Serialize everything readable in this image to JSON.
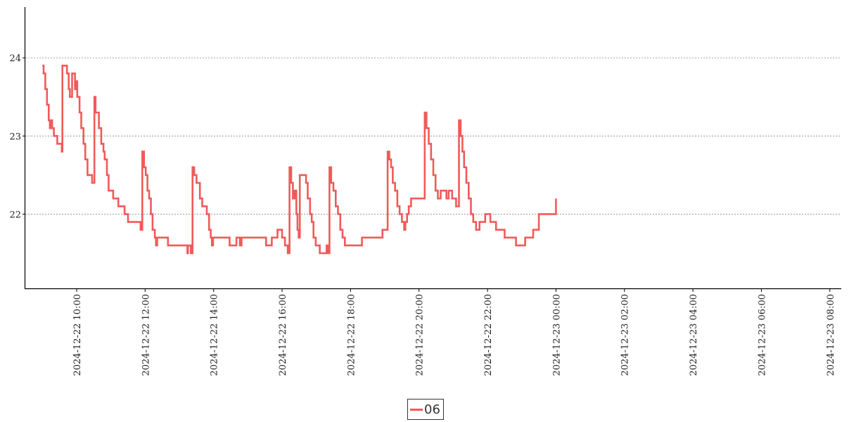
{
  "chart_data": {
    "type": "line",
    "title": "",
    "xlabel": "",
    "ylabel": "",
    "ylim": [
      21.05,
      24.65
    ],
    "yticks": [
      22,
      23,
      24
    ],
    "ytick_labels": [
      "22",
      "23",
      "24"
    ],
    "xlim": [
      "2024-12-22 08:30",
      "2024-12-23 08:20"
    ],
    "xticks": [
      "2024-12-22 10:00",
      "2024-12-22 12:00",
      "2024-12-22 14:00",
      "2024-12-22 16:00",
      "2024-12-22 18:00",
      "2024-12-22 20:00",
      "2024-12-22 22:00",
      "2024-12-23 00:00",
      "2024-12-23 02:00",
      "2024-12-23 04:00",
      "2024-12-23 06:00",
      "2024-12-23 08:00"
    ],
    "xtick_labels": [
      "2024-12-22 10:00",
      "2024-12-22 12:00",
      "2024-12-22 14:00",
      "2024-12-22 16:00",
      "2024-12-22 18:00",
      "2024-12-22 20:00",
      "2024-12-22 22:00",
      "2024-12-23 00:00",
      "2024-12-23 02:00",
      "2024-12-23 04:00",
      "2024-12-23 06:00",
      "2024-12-23 08:00"
    ],
    "grid": "y-dotted",
    "legend_position": "bottom-center",
    "series": [
      {
        "name": "06",
        "color": "#f05a5a",
        "step": true,
        "points": [
          [
            "2024-12-22 09:00",
            23.9
          ],
          [
            "2024-12-22 09:02",
            23.8
          ],
          [
            "2024-12-22 09:05",
            23.6
          ],
          [
            "2024-12-22 09:08",
            23.4
          ],
          [
            "2024-12-22 09:11",
            23.2
          ],
          [
            "2024-12-22 09:13",
            23.1
          ],
          [
            "2024-12-22 09:15",
            23.2
          ],
          [
            "2024-12-22 09:17",
            23.1
          ],
          [
            "2024-12-22 09:20",
            23.0
          ],
          [
            "2024-12-22 09:26",
            22.9
          ],
          [
            "2024-12-22 09:34",
            22.8
          ],
          [
            "2024-12-22 09:35",
            23.9
          ],
          [
            "2024-12-22 09:43",
            23.8
          ],
          [
            "2024-12-22 09:46",
            23.6
          ],
          [
            "2024-12-22 09:48",
            23.5
          ],
          [
            "2024-12-22 09:52",
            23.8
          ],
          [
            "2024-12-22 09:57",
            23.6
          ],
          [
            "2024-12-22 09:59",
            23.7
          ],
          [
            "2024-12-22 10:01",
            23.5
          ],
          [
            "2024-12-22 10:05",
            23.3
          ],
          [
            "2024-12-22 10:08",
            23.1
          ],
          [
            "2024-12-22 10:12",
            22.9
          ],
          [
            "2024-12-22 10:15",
            22.7
          ],
          [
            "2024-12-22 10:19",
            22.5
          ],
          [
            "2024-12-22 10:27",
            22.4
          ],
          [
            "2024-12-22 10:31",
            23.5
          ],
          [
            "2024-12-22 10:33",
            23.3
          ],
          [
            "2024-12-22 10:39",
            23.1
          ],
          [
            "2024-12-22 10:43",
            22.9
          ],
          [
            "2024-12-22 10:47",
            22.8
          ],
          [
            "2024-12-22 10:49",
            22.7
          ],
          [
            "2024-12-22 10:53",
            22.5
          ],
          [
            "2024-12-22 10:56",
            22.3
          ],
          [
            "2024-12-22 11:00",
            22.3
          ],
          [
            "2024-12-22 11:04",
            22.2
          ],
          [
            "2024-12-22 11:09",
            22.2
          ],
          [
            "2024-12-22 11:13",
            22.1
          ],
          [
            "2024-12-22 11:24",
            22.0
          ],
          [
            "2024-12-22 11:30",
            21.9
          ],
          [
            "2024-12-22 11:45",
            21.9
          ],
          [
            "2024-12-22 11:52",
            21.8
          ],
          [
            "2024-12-22 11:55",
            22.8
          ],
          [
            "2024-12-22 11:58",
            22.6
          ],
          [
            "2024-12-22 12:01",
            22.5
          ],
          [
            "2024-12-22 12:04",
            22.3
          ],
          [
            "2024-12-22 12:07",
            22.2
          ],
          [
            "2024-12-22 12:10",
            22.0
          ],
          [
            "2024-12-22 12:13",
            21.8
          ],
          [
            "2024-12-22 12:17",
            21.7
          ],
          [
            "2024-12-22 12:19",
            21.6
          ],
          [
            "2024-12-22 12:21",
            21.7
          ],
          [
            "2024-12-22 12:40",
            21.6
          ],
          [
            "2024-12-22 13:14",
            21.5
          ],
          [
            "2024-12-22 13:15",
            21.6
          ],
          [
            "2024-12-22 13:20",
            21.5
          ],
          [
            "2024-12-22 13:23",
            22.6
          ],
          [
            "2024-12-22 13:26",
            22.5
          ],
          [
            "2024-12-22 13:30",
            22.4
          ],
          [
            "2024-12-22 13:36",
            22.2
          ],
          [
            "2024-12-22 13:40",
            22.1
          ],
          [
            "2024-12-22 13:48",
            22.0
          ],
          [
            "2024-12-22 13:52",
            21.8
          ],
          [
            "2024-12-22 13:55",
            21.7
          ],
          [
            "2024-12-22 13:57",
            21.6
          ],
          [
            "2024-12-22 13:59",
            21.7
          ],
          [
            "2024-12-22 14:28",
            21.6
          ],
          [
            "2024-12-22 14:40",
            21.7
          ],
          [
            "2024-12-22 14:46",
            21.6
          ],
          [
            "2024-12-22 14:49",
            21.7
          ],
          [
            "2024-12-22 15:32",
            21.6
          ],
          [
            "2024-12-22 15:42",
            21.7
          ],
          [
            "2024-12-22 15:52",
            21.8
          ],
          [
            "2024-12-22 16:00",
            21.7
          ],
          [
            "2024-12-22 16:05",
            21.6
          ],
          [
            "2024-12-22 16:10",
            21.5
          ],
          [
            "2024-12-22 16:13",
            22.6
          ],
          [
            "2024-12-22 16:16",
            22.4
          ],
          [
            "2024-12-22 16:19",
            22.2
          ],
          [
            "2024-12-22 16:22",
            22.3
          ],
          [
            "2024-12-22 16:25",
            22.0
          ],
          [
            "2024-12-22 16:27",
            21.8
          ],
          [
            "2024-12-22 16:29",
            21.7
          ],
          [
            "2024-12-22 16:31",
            22.5
          ],
          [
            "2024-12-22 16:42",
            22.4
          ],
          [
            "2024-12-22 16:45",
            22.2
          ],
          [
            "2024-12-22 16:49",
            22.0
          ],
          [
            "2024-12-22 16:52",
            21.9
          ],
          [
            "2024-12-22 16:55",
            21.7
          ],
          [
            "2024-12-22 16:59",
            21.6
          ],
          [
            "2024-12-22 17:06",
            21.5
          ],
          [
            "2024-12-22 17:18",
            21.6
          ],
          [
            "2024-12-22 17:21",
            21.5
          ],
          [
            "2024-12-22 17:23",
            22.6
          ],
          [
            "2024-12-22 17:26",
            22.4
          ],
          [
            "2024-12-22 17:30",
            22.3
          ],
          [
            "2024-12-22 17:34",
            22.1
          ],
          [
            "2024-12-22 17:38",
            22.0
          ],
          [
            "2024-12-22 17:42",
            21.8
          ],
          [
            "2024-12-22 17:46",
            21.7
          ],
          [
            "2024-12-22 17:50",
            21.6
          ],
          [
            "2024-12-22 18:20",
            21.7
          ],
          [
            "2024-12-22 18:56",
            21.8
          ],
          [
            "2024-12-22 19:05",
            22.8
          ],
          [
            "2024-12-22 19:08",
            22.7
          ],
          [
            "2024-12-22 19:11",
            22.6
          ],
          [
            "2024-12-22 19:14",
            22.4
          ],
          [
            "2024-12-22 19:18",
            22.3
          ],
          [
            "2024-12-22 19:22",
            22.1
          ],
          [
            "2024-12-22 19:26",
            22.0
          ],
          [
            "2024-12-22 19:30",
            21.9
          ],
          [
            "2024-12-22 19:34",
            21.8
          ],
          [
            "2024-12-22 19:36",
            21.9
          ],
          [
            "2024-12-22 19:39",
            22.0
          ],
          [
            "2024-12-22 19:42",
            22.1
          ],
          [
            "2024-12-22 19:46",
            22.2
          ],
          [
            "2024-12-22 19:57",
            22.2
          ],
          [
            "2024-12-22 20:10",
            23.3
          ],
          [
            "2024-12-22 20:13",
            23.1
          ],
          [
            "2024-12-22 20:17",
            22.9
          ],
          [
            "2024-12-22 20:21",
            22.7
          ],
          [
            "2024-12-22 20:25",
            22.5
          ],
          [
            "2024-12-22 20:29",
            22.3
          ],
          [
            "2024-12-22 20:33",
            22.2
          ],
          [
            "2024-12-22 20:38",
            22.3
          ],
          [
            "2024-12-22 20:48",
            22.2
          ],
          [
            "2024-12-22 20:52",
            22.3
          ],
          [
            "2024-12-22 20:58",
            22.2
          ],
          [
            "2024-12-22 21:05",
            22.1
          ],
          [
            "2024-12-22 21:10",
            23.2
          ],
          [
            "2024-12-22 21:13",
            23.0
          ],
          [
            "2024-12-22 21:16",
            22.8
          ],
          [
            "2024-12-22 21:19",
            22.6
          ],
          [
            "2024-12-22 21:23",
            22.4
          ],
          [
            "2024-12-22 21:27",
            22.2
          ],
          [
            "2024-12-22 21:31",
            22.0
          ],
          [
            "2024-12-22 21:35",
            21.9
          ],
          [
            "2024-12-22 21:40",
            21.8
          ],
          [
            "2024-12-22 21:46",
            21.9
          ],
          [
            "2024-12-22 21:56",
            22.0
          ],
          [
            "2024-12-22 22:05",
            21.9
          ],
          [
            "2024-12-22 22:15",
            21.8
          ],
          [
            "2024-12-22 22:30",
            21.7
          ],
          [
            "2024-12-22 22:50",
            21.6
          ],
          [
            "2024-12-22 23:06",
            21.7
          ],
          [
            "2024-12-22 23:20",
            21.8
          ],
          [
            "2024-12-22 23:30",
            22.0
          ],
          [
            "2024-12-23 00:00",
            22.2
          ]
        ]
      }
    ]
  }
}
